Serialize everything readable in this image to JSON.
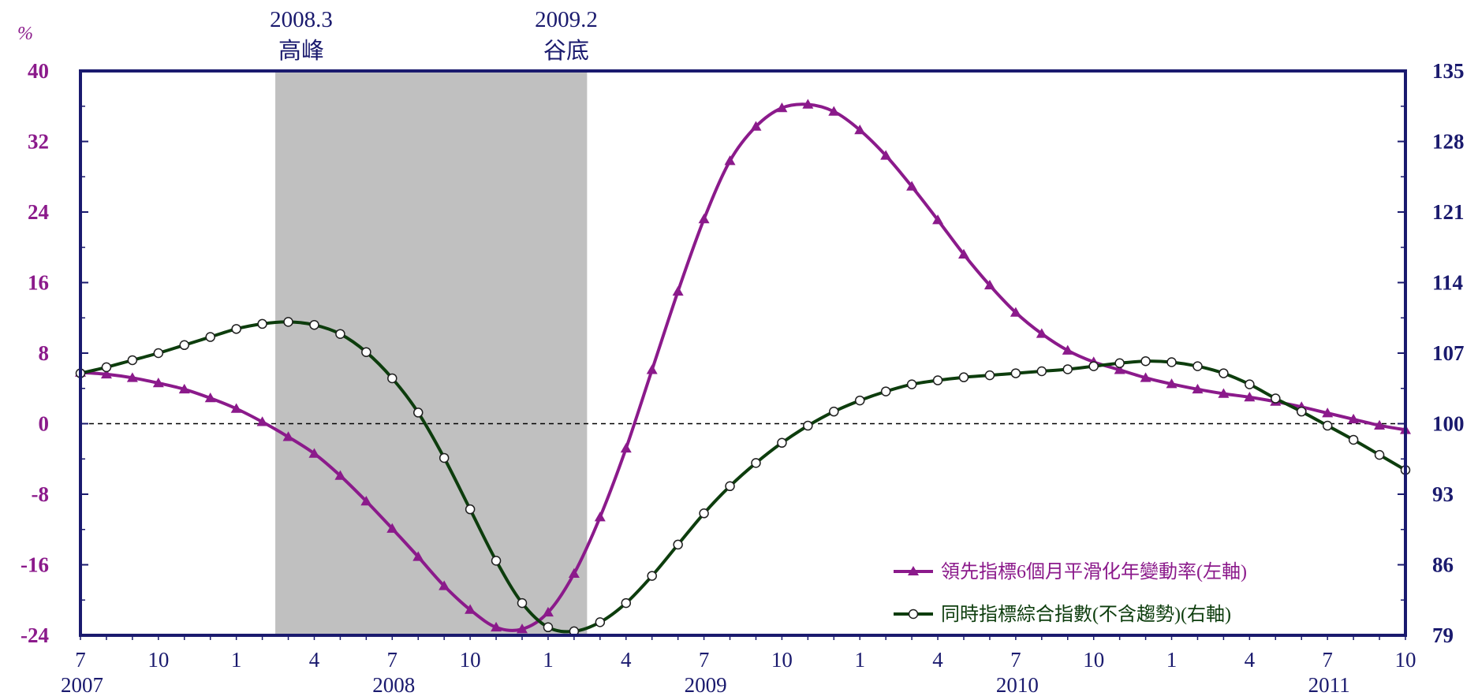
{
  "chart_data": {
    "type": "line",
    "left_unit": "%",
    "left_axis": {
      "ylim": [
        -24,
        40
      ],
      "ticks": [
        40,
        32,
        24,
        16,
        8,
        0,
        -8,
        -16,
        -24
      ]
    },
    "right_axis": {
      "ylim": [
        79,
        135
      ],
      "ticks": [
        135,
        128,
        121,
        114,
        107,
        100,
        93,
        86,
        79
      ]
    },
    "x_month_ticks": [
      {
        "i": 0,
        "label": "7"
      },
      {
        "i": 3,
        "label": "10"
      },
      {
        "i": 6,
        "label": "1"
      },
      {
        "i": 9,
        "label": "4"
      },
      {
        "i": 12,
        "label": "7"
      },
      {
        "i": 15,
        "label": "10"
      },
      {
        "i": 18,
        "label": "1"
      },
      {
        "i": 21,
        "label": "4"
      },
      {
        "i": 24,
        "label": "7"
      },
      {
        "i": 27,
        "label": "10"
      },
      {
        "i": 30,
        "label": "1"
      },
      {
        "i": 33,
        "label": "4"
      },
      {
        "i": 36,
        "label": "7"
      },
      {
        "i": 39,
        "label": "10"
      },
      {
        "i": 42,
        "label": "1"
      },
      {
        "i": 45,
        "label": "4"
      },
      {
        "i": 48,
        "label": "7"
      },
      {
        "i": 51,
        "label": "10"
      }
    ],
    "x_year_labels": [
      {
        "i": 0,
        "label": "2007"
      },
      {
        "i": 12,
        "label": "2008"
      },
      {
        "i": 24,
        "label": "2009"
      },
      {
        "i": 36,
        "label": "2010"
      },
      {
        "i": 48,
        "label": "2011"
      }
    ],
    "shaded_region": {
      "start_i": 7.5,
      "end_i": 19.5
    },
    "annotations": [
      {
        "i": 8.5,
        "line1": "2008.3",
        "line2": "高峰"
      },
      {
        "i": 18.7,
        "line1": "2009.2",
        "line2": "谷底"
      }
    ],
    "reference_line": {
      "axis": "left",
      "y": 0,
      "style": "dashed"
    },
    "series": [
      {
        "name": "領先指標6個月平滑化年變動率(左軸)",
        "axis": "left",
        "color": "#8b1a8b",
        "marker": "triangle",
        "values": [
          5.8,
          5.6,
          5.2,
          4.6,
          3.9,
          2.9,
          1.7,
          0.2,
          -1.5,
          -3.4,
          -5.9,
          -8.8,
          -11.9,
          -15.1,
          -18.4,
          -21.1,
          -23.1,
          -23.3,
          -21.4,
          -17.0,
          -10.6,
          -2.8,
          6.1,
          15.0,
          23.2,
          29.8,
          33.7,
          35.8,
          36.2,
          35.4,
          33.3,
          30.4,
          26.9,
          23.1,
          19.2,
          15.7,
          12.6,
          10.2,
          8.3,
          7.0,
          6.1,
          5.2,
          4.5,
          3.9,
          3.4,
          3.0,
          2.5,
          1.9,
          1.2,
          0.5,
          -0.2,
          -0.7
        ]
      },
      {
        "name": "同時指標綜合指數(不含趨勢)(右軸)",
        "axis": "right",
        "color": "#0d3d0d",
        "marker": "open-circle",
        "values": [
          105.0,
          105.6,
          106.3,
          107.0,
          107.8,
          108.6,
          109.4,
          109.9,
          110.1,
          109.8,
          108.9,
          107.1,
          104.5,
          101.1,
          96.6,
          91.5,
          86.4,
          82.2,
          79.8,
          79.4,
          80.3,
          82.2,
          84.9,
          88.0,
          91.1,
          93.8,
          96.1,
          98.1,
          99.8,
          101.2,
          102.3,
          103.2,
          103.9,
          104.3,
          104.6,
          104.8,
          105.0,
          105.2,
          105.4,
          105.7,
          106.0,
          106.2,
          106.1,
          105.7,
          105.0,
          103.9,
          102.5,
          101.2,
          99.8,
          98.4,
          96.9,
          95.4
        ]
      }
    ]
  }
}
